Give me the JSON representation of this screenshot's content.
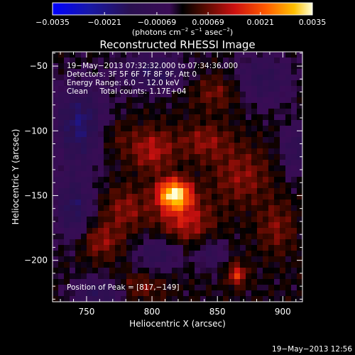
{
  "chart_data": {
    "type": "heatmap",
    "title": "Reconstructed RHESSI Image",
    "xlabel": "Heliocentric X (arcsec)",
    "ylabel": "Heliocentric Y (arcsec)",
    "xlim": [
      724,
      915
    ],
    "ylim": [
      -232,
      -39
    ],
    "x_ticks": [
      750,
      800,
      850,
      900
    ],
    "y_ticks": [
      -50,
      -100,
      -150,
      -200
    ],
    "x_tick_labels": [
      "750",
      "800",
      "850",
      "900"
    ],
    "y_tick_labels": [
      "−50",
      "−100",
      "−150",
      "−200"
    ],
    "colorbar": {
      "min": -0.0035,
      "max": 0.0035,
      "tick_values": [
        -0.0035,
        -0.0021,
        -0.00069,
        0.00069,
        0.0021,
        0.0035
      ],
      "tick_labels": [
        "−0.0035",
        "−0.0021",
        "−0.00069",
        "0.00069",
        "0.0021",
        "0.0035"
      ],
      "unit_main": "(photons cm",
      "unit_exp1": "−2",
      "unit_mid": " s",
      "unit_exp2": "−1",
      "unit_end": " asec",
      "unit_exp3": "−2",
      "unit_close": ")"
    },
    "info_lines": [
      "19−May−2013 07:32:32.000 to 07:34:36.000",
      "Detectors: 3F 5F 6F 7F 8F 9F, Att 0",
      "Energy Range: 6.0 − 12.0 keV",
      "Clean     Total counts: 1.17E+04"
    ],
    "peak_label": "Position of Peak = [817,−149]",
    "peak": {
      "x": 817,
      "y": -149
    },
    "sources": [
      {
        "x": 817,
        "y": -149,
        "amp": 0.0035,
        "sx": 9,
        "sy": 8
      },
      {
        "x": 825,
        "y": -170,
        "amp": 0.0013,
        "sx": 15,
        "sy": 12
      },
      {
        "x": 800,
        "y": -115,
        "amp": 0.0012,
        "sx": 12,
        "sy": 12
      },
      {
        "x": 840,
        "y": -108,
        "amp": 0.0009,
        "sx": 14,
        "sy": 10
      },
      {
        "x": 868,
        "y": -135,
        "amp": 0.0009,
        "sx": 16,
        "sy": 16
      },
      {
        "x": 865,
        "y": -211,
        "amp": 0.0016,
        "sx": 5,
        "sy": 6
      },
      {
        "x": 760,
        "y": -185,
        "amp": 0.001,
        "sx": 12,
        "sy": 10
      },
      {
        "x": 780,
        "y": -160,
        "amp": 0.0009,
        "sx": 12,
        "sy": 12
      },
      {
        "x": 895,
        "y": -175,
        "amp": 0.0008,
        "sx": 10,
        "sy": 14
      },
      {
        "x": 790,
        "y": -220,
        "amp": 0.0008,
        "sx": 14,
        "sy": 8
      },
      {
        "x": 850,
        "y": -70,
        "amp": 0.0008,
        "sx": 14,
        "sy": 10
      },
      {
        "x": 770,
        "y": -105,
        "amp": 0.0006,
        "sx": 10,
        "sy": 10
      },
      {
        "x": 745,
        "y": -95,
        "amp": -0.0018,
        "sx": 14,
        "sy": 22
      },
      {
        "x": 740,
        "y": -160,
        "amp": -0.0015,
        "sx": 10,
        "sy": 18
      },
      {
        "x": 800,
        "y": -55,
        "amp": -0.0014,
        "sx": 18,
        "sy": 10
      },
      {
        "x": 760,
        "y": -225,
        "amp": -0.0014,
        "sx": 14,
        "sy": 8
      },
      {
        "x": 805,
        "y": -195,
        "amp": -0.0012,
        "sx": 12,
        "sy": 10
      },
      {
        "x": 885,
        "y": -60,
        "amp": -0.0012,
        "sx": 16,
        "sy": 14
      },
      {
        "x": 910,
        "y": -115,
        "amp": -0.0011,
        "sx": 8,
        "sy": 14
      },
      {
        "x": 845,
        "y": -195,
        "amp": -0.001,
        "sx": 8,
        "sy": 8
      }
    ]
  },
  "footer": {
    "timestamp": "19−May−2013 12:56"
  }
}
